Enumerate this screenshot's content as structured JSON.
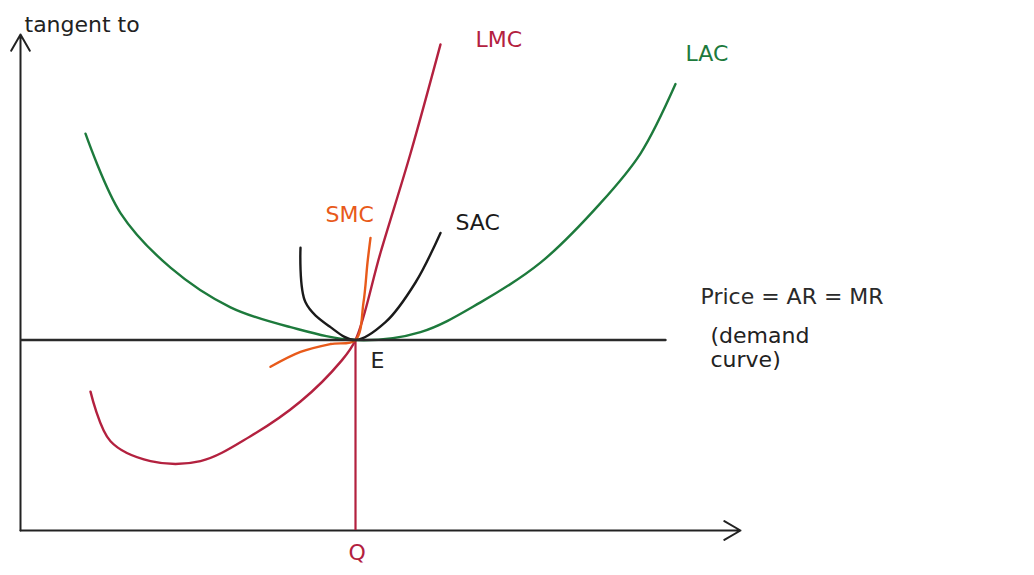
{
  "chart_data": {
    "type": "line",
    "title": "tangent to",
    "xlim": [
      0,
      720
    ],
    "ylim": [
      0,
      500
    ],
    "xticks": [],
    "yticks": [],
    "tick_labels": false,
    "series": [
      {
        "name": "LMC",
        "color": "#b3213f",
        "line_style": "solid",
        "label_at": [
          455,
          495
        ],
        "x": [
          70,
          90,
          130,
          180,
          230,
          280,
          320,
          335,
          360,
          390,
          420
        ],
        "values": [
          140,
          90,
          70,
          70,
          95,
          130,
          170,
          192,
          280,
          380,
          490
        ]
      },
      {
        "name": "LAC",
        "color": "#1d7a3c",
        "line_style": "solid",
        "label_at": [
          665,
          480
        ],
        "x": [
          65,
          100,
          150,
          210,
          270,
          335,
          400,
          460,
          520,
          580,
          620,
          655
        ],
        "values": [
          400,
          320,
          265,
          225,
          205,
          192,
          200,
          230,
          270,
          330,
          380,
          450
        ]
      },
      {
        "name": "SMC",
        "color": "#e85a1a",
        "line_style": "solid",
        "label_at": [
          305,
          318
        ],
        "x": [
          250,
          280,
          310,
          335,
          343,
          347,
          350
        ],
        "values": [
          165,
          180,
          188,
          192,
          230,
          270,
          295
        ]
      },
      {
        "name": "SAC",
        "color": "#1a1a1a",
        "line_style": "solid",
        "label_at": [
          435,
          310
        ],
        "x": [
          280,
          285,
          310,
          335,
          365,
          395,
          420
        ],
        "values": [
          285,
          230,
          205,
          192,
          210,
          250,
          300
        ]
      },
      {
        "name": "Price = AR = MR",
        "color": "#2a2a2a",
        "line_style": "solid",
        "label_at": [
          680,
          235
        ],
        "x": [
          0,
          645
        ],
        "values": [
          192,
          192
        ]
      }
    ],
    "drop_line": {
      "x": 335,
      "y": 192,
      "color": "#b3213f"
    },
    "annotations": [
      {
        "text": "(demand curve)",
        "x": 690,
        "y": 185,
        "color": "#222222"
      },
      {
        "text": "E",
        "x": 350,
        "y": 172,
        "color": "#222222"
      },
      {
        "text": "Q",
        "x": 328,
        "y": -22,
        "color": "#b3213f"
      }
    ]
  }
}
